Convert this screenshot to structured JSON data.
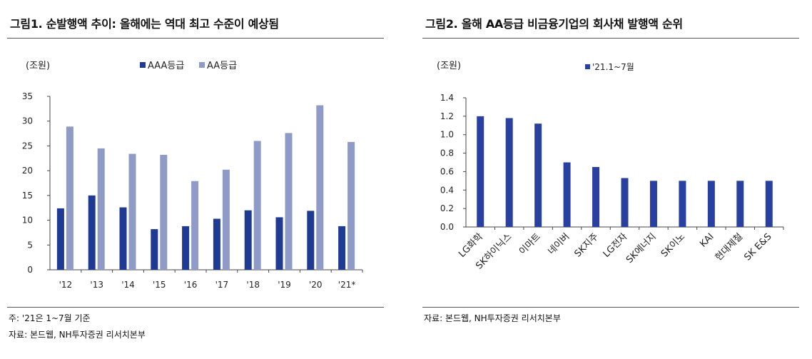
{
  "figures": [
    {
      "title": "그림1. 순발행액 추이: 올해에는 역대 최고 수준이 예상됨",
      "unit": "(조원)",
      "notes": [
        "주: '21은 1~7월 기준",
        "자료: 본드웹, NH투자증권 리서치본부"
      ]
    },
    {
      "title": "그림2. 올해 AA등급 비금융기업의 회사채 발행액 순위",
      "unit": "(조원)",
      "notes": [
        "자료: 본드웹, NH투자증권 리서치본부"
      ]
    }
  ],
  "chart_data": [
    {
      "type": "bar",
      "categories": [
        "'12",
        "'13",
        "'14",
        "'15",
        "'16",
        "'17",
        "'18",
        "'19",
        "'20",
        "'21*"
      ],
      "series": [
        {
          "name": "AAA등급",
          "color": "#1f3a93",
          "values": [
            12.4,
            15.0,
            12.6,
            8.2,
            8.8,
            10.3,
            12.0,
            10.6,
            11.9,
            8.8
          ]
        },
        {
          "name": "AA등급",
          "color": "#8e9bc6",
          "values": [
            28.9,
            24.5,
            23.4,
            23.2,
            17.9,
            20.2,
            26.0,
            27.6,
            33.2,
            25.8
          ]
        }
      ],
      "ylim": [
        0,
        35
      ],
      "yticks": [
        0,
        5,
        10,
        15,
        20,
        25,
        30,
        35
      ],
      "ylabel": "(조원)",
      "legend": "top",
      "grid": false
    },
    {
      "type": "bar",
      "categories": [
        "LG화학",
        "SK하이닉스",
        "이마트",
        "네이버",
        "SK지주",
        "LG전자",
        "SK에너지",
        "SK이노",
        "KAI",
        "현대제철",
        "SK E&S"
      ],
      "series": [
        {
          "name": "'21.1~7월",
          "color": "#2840a0",
          "values": [
            1.2,
            1.18,
            1.12,
            0.7,
            0.65,
            0.53,
            0.5,
            0.5,
            0.5,
            0.5,
            0.5
          ]
        }
      ],
      "ylim": [
        0,
        1.4
      ],
      "yticks": [
        "0.0",
        "0.2",
        "0.4",
        "0.6",
        "0.8",
        "1.0",
        "1.2",
        "1.4"
      ],
      "ylabel": "(조원)",
      "legend": "top",
      "grid": false
    }
  ]
}
